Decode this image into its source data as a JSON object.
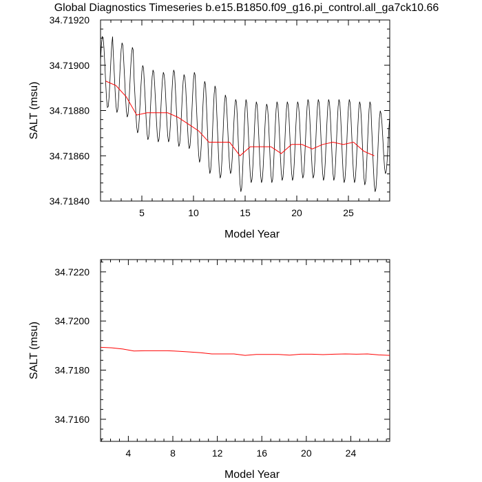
{
  "figure_title": "Global Diagnostics Timeseries b.e15.B1850.f09_g16.pi_control.all_ga7ck10.66",
  "chart_data": [
    {
      "type": "line",
      "xlabel": "Model Year",
      "ylabel": "SALT (msu)",
      "xlim": [
        1,
        29
      ],
      "ylim": [
        34.7184,
        34.7192
      ],
      "xticks": [
        5,
        10,
        15,
        20,
        25
      ],
      "xtick_labels": [
        "5",
        "10",
        "15",
        "20",
        "25"
      ],
      "yticks": [
        34.7184,
        34.7186,
        34.7188,
        34.719,
        34.7192
      ],
      "ytick_labels": [
        "34.71840",
        "34.71860",
        "34.71880",
        "34.71900",
        "34.71920"
      ],
      "grid": false,
      "series": [
        {
          "color": "#000000",
          "seasonal": {
            "start_year": 1.0,
            "end_year": 29.0,
            "steps_per_year": 12,
            "peak_years": [
              1.2,
              2.1,
              3.1,
              4.1,
              5.1,
              6.1,
              7.1,
              8.1,
              9.1,
              10.1,
              11.1,
              12.1,
              13.1,
              14.1,
              15.1,
              16.1,
              17.1,
              18.1,
              19.1,
              20.1,
              21.1,
              22.1,
              23.1,
              24.1,
              25.1,
              26.1,
              27.1,
              28.1
            ],
            "peaks": [
              34.71913,
              34.7191,
              34.71908,
              34.719,
              34.71898,
              34.71897,
              34.71898,
              34.71896,
              34.71897,
              34.71893,
              34.71891,
              34.71887,
              34.71885,
              34.71885,
              34.71884,
              34.71883,
              34.71884,
              34.71884,
              34.71884,
              34.71885,
              34.71885,
              34.71885,
              34.71885,
              34.71885,
              34.71884,
              34.71884,
              34.7188,
              34.7188
            ],
            "troughs": [
              34.71881,
              34.71879,
              34.71877,
              34.7187,
              34.71867,
              34.71866,
              34.71866,
              34.71864,
              34.71863,
              34.71857,
              34.71852,
              34.7185,
              34.71852,
              34.71844,
              34.71848,
              34.71848,
              34.71848,
              34.71849,
              34.71849,
              34.7185,
              34.7185,
              34.71849,
              34.71849,
              34.71848,
              34.71848,
              34.71847,
              34.71844,
              34.71852
            ]
          }
        },
        {
          "color": "#ff0000",
          "x": [
            1.5,
            2.5,
            3.5,
            4.5,
            5.5,
            6.5,
            7.5,
            8.5,
            9.5,
            10.5,
            11.5,
            12.5,
            13.5,
            14.5,
            15.5,
            16.5,
            17.5,
            18.5,
            19.5,
            20.5,
            21.5,
            22.5,
            23.5,
            24.5,
            25.5,
            26.5,
            27.5
          ],
          "y": [
            34.71893,
            34.71891,
            34.71886,
            34.71878,
            34.71879,
            34.71879,
            34.71879,
            34.71877,
            34.71874,
            34.71871,
            34.71866,
            34.71866,
            34.71866,
            34.7186,
            34.71864,
            34.71864,
            34.71864,
            34.71861,
            34.71865,
            34.71865,
            34.71863,
            34.71865,
            34.71866,
            34.71865,
            34.71866,
            34.71862,
            34.7186
          ]
        }
      ]
    },
    {
      "type": "line",
      "xlabel": "Model Year",
      "ylabel": "SALT (msu)",
      "xlim": [
        1.5,
        27.5
      ],
      "ylim": [
        34.7151,
        34.7225
      ],
      "xticks": [
        4,
        8,
        12,
        16,
        20,
        24
      ],
      "xtick_labels": [
        "4",
        "8",
        "12",
        "16",
        "20",
        "24"
      ],
      "yticks": [
        34.716,
        34.718,
        34.72,
        34.722
      ],
      "ytick_labels": [
        "34.7160",
        "34.7180",
        "34.7200",
        "34.7220"
      ],
      "grid": false,
      "series": [
        {
          "color": "#ff0000",
          "x": [
            1.5,
            2.5,
            3.5,
            4.5,
            5.5,
            6.5,
            7.5,
            8.5,
            9.5,
            10.5,
            11.5,
            12.5,
            13.5,
            14.5,
            15.5,
            16.5,
            17.5,
            18.5,
            19.5,
            20.5,
            21.5,
            22.5,
            23.5,
            24.5,
            25.5,
            26.5,
            27.5
          ],
          "y": [
            34.71893,
            34.71891,
            34.71886,
            34.71878,
            34.71879,
            34.71879,
            34.71879,
            34.71877,
            34.71874,
            34.71871,
            34.71866,
            34.71866,
            34.71866,
            34.7186,
            34.71864,
            34.71864,
            34.71864,
            34.71861,
            34.71865,
            34.71865,
            34.71863,
            34.71865,
            34.71866,
            34.71865,
            34.71866,
            34.71862,
            34.7186
          ]
        }
      ]
    }
  ]
}
